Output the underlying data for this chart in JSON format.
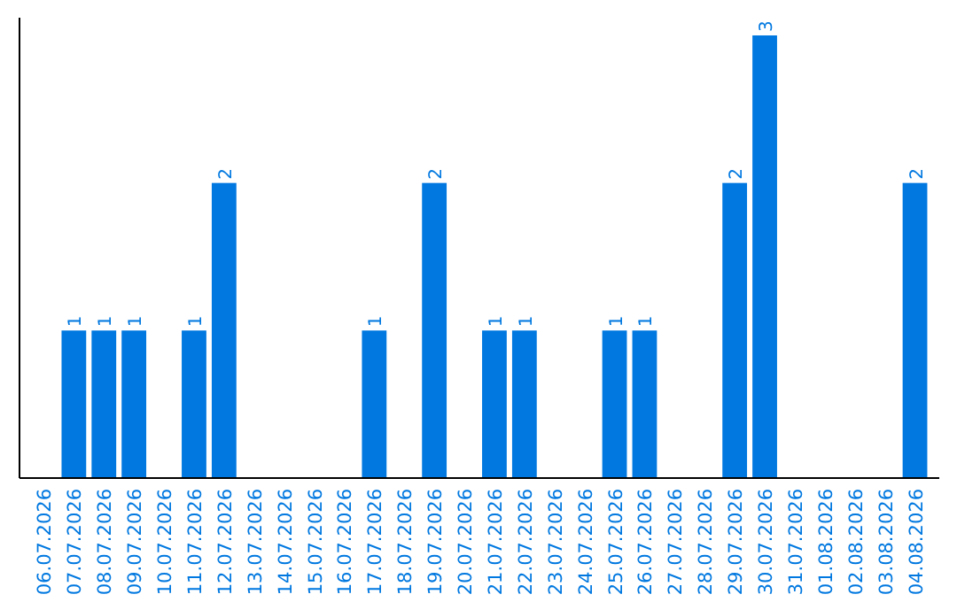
{
  "chart_data": {
    "type": "bar",
    "categories": [
      "06.07.2026",
      "07.07.2026",
      "08.07.2026",
      "09.07.2026",
      "10.07.2026",
      "11.07.2026",
      "12.07.2026",
      "13.07.2026",
      "14.07.2026",
      "15.07.2026",
      "16.07.2026",
      "17.07.2026",
      "18.07.2026",
      "19.07.2026",
      "20.07.2026",
      "21.07.2026",
      "22.07.2026",
      "23.07.2026",
      "24.07.2026",
      "25.07.2026",
      "26.07.2026",
      "27.07.2026",
      "28.07.2026",
      "29.07.2026",
      "30.07.2026",
      "31.07.2026",
      "01.08.2026",
      "02.08.2026",
      "03.08.2026",
      "04.08.2026"
    ],
    "values": [
      0,
      1,
      1,
      1,
      0,
      1,
      2,
      0,
      0,
      0,
      0,
      1,
      0,
      2,
      0,
      1,
      1,
      0,
      0,
      1,
      1,
      0,
      0,
      2,
      3,
      0,
      0,
      0,
      0,
      2
    ],
    "value_labels": [
      null,
      "1",
      "1",
      "1",
      null,
      "1",
      "2",
      null,
      null,
      null,
      null,
      "1",
      null,
      "2",
      null,
      "1",
      "1",
      null,
      null,
      "1",
      "1",
      null,
      null,
      "2",
      "3",
      null,
      null,
      null,
      null,
      "2"
    ],
    "color": "#0078e0"
  }
}
